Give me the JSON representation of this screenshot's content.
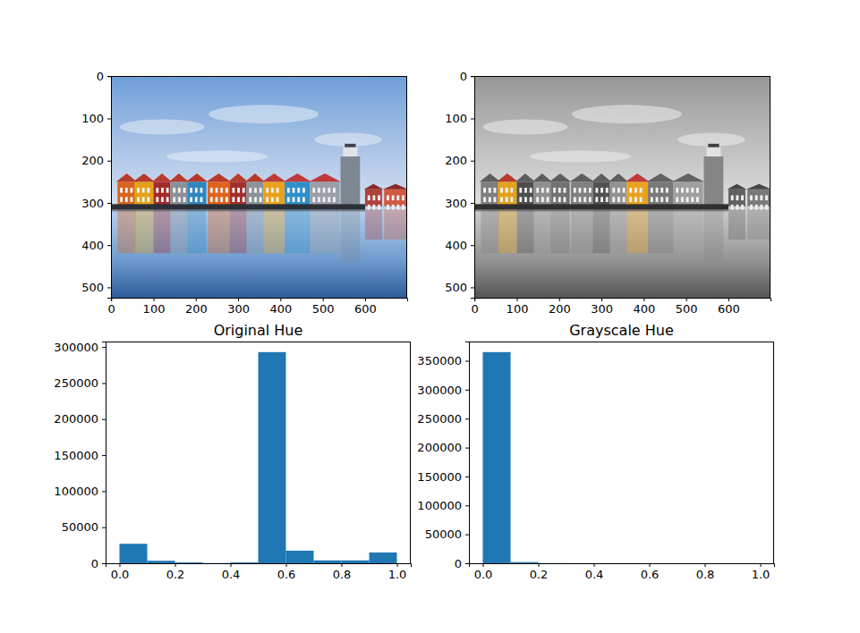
{
  "chart_data": [
    {
      "type": "image",
      "xlim": [
        -0.5,
        699.5
      ],
      "ylim": [
        524.5,
        -0.5
      ],
      "xticks": [
        0,
        100,
        200,
        300,
        400,
        500,
        600
      ],
      "yticks": [
        0,
        100,
        200,
        300,
        400,
        500
      ]
    },
    {
      "type": "image",
      "xlim": [
        -0.5,
        699.5
      ],
      "ylim": [
        524.5,
        -0.5
      ],
      "xticks": [
        0,
        100,
        200,
        300,
        400,
        500,
        600
      ],
      "yticks": [
        0,
        100,
        200,
        300,
        400,
        500
      ]
    },
    {
      "type": "histogram",
      "title": "Original Hue",
      "bins": [
        0,
        0.1,
        0.2,
        0.3,
        0.4,
        0.5,
        0.6,
        0.7,
        0.8,
        0.9,
        1.0
      ],
      "values": [
        27000,
        3500,
        1200,
        300,
        1200,
        293000,
        17500,
        4000,
        4000,
        15000
      ],
      "color": "#1f77b4",
      "xlim": [
        -0.05,
        1.05
      ],
      "ylim": [
        0,
        307650
      ],
      "xticks": [
        {
          "value": 0,
          "label": "0.0"
        },
        {
          "value": 0.2,
          "label": "0.2"
        },
        {
          "value": 0.4,
          "label": "0.4"
        },
        {
          "value": 0.6,
          "label": "0.6"
        },
        {
          "value": 0.8,
          "label": "0.8"
        },
        {
          "value": 1,
          "label": "1.0"
        }
      ],
      "yticks": [
        0,
        50000,
        100000,
        150000,
        200000,
        250000,
        300000
      ]
    },
    {
      "type": "histogram",
      "title": "Grayscale Hue",
      "bins": [
        0,
        0.1,
        0.2,
        0.3,
        0.4,
        0.5,
        0.6,
        0.7,
        0.8,
        0.9,
        1.0
      ],
      "values": [
        365000,
        2000,
        300,
        100,
        50,
        50,
        30,
        30,
        20,
        20
      ],
      "color": "#1f77b4",
      "xlim": [
        -0.05,
        1.05
      ],
      "ylim": [
        0,
        383250
      ],
      "xticks": [
        {
          "value": 0,
          "label": "0.0"
        },
        {
          "value": 0.2,
          "label": "0.2"
        },
        {
          "value": 0.4,
          "label": "0.4"
        },
        {
          "value": 0.6,
          "label": "0.6"
        },
        {
          "value": 0.8,
          "label": "0.8"
        },
        {
          "value": 1,
          "label": "1.0"
        }
      ],
      "yticks": [
        0,
        50000,
        100000,
        150000,
        200000,
        250000,
        300000,
        350000
      ]
    }
  ]
}
